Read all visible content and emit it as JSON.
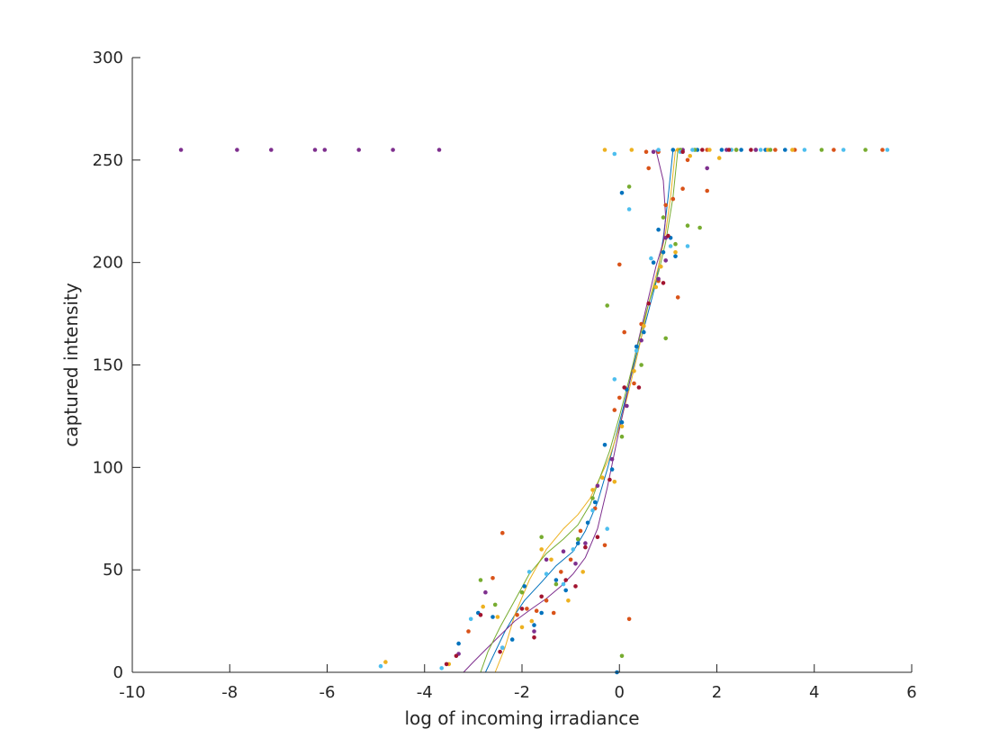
{
  "chart_data": {
    "type": "scatter",
    "title": "",
    "xlabel": "log of incoming irradiance",
    "ylabel": "captured intensity",
    "xlim": [
      -10,
      6
    ],
    "ylim": [
      0,
      300
    ],
    "xticks": [
      -10,
      -8,
      -6,
      -4,
      -2,
      0,
      2,
      4,
      6
    ],
    "yticks": [
      0,
      50,
      100,
      150,
      200,
      250,
      300
    ],
    "grid": false,
    "legend": "none",
    "series": [
      {
        "color": "#0072BD",
        "points": [
          [
            -3.3,
            14
          ],
          [
            -2.9,
            29
          ],
          [
            -2.6,
            27
          ],
          [
            -2.2,
            16
          ],
          [
            -1.95,
            42
          ],
          [
            -1.75,
            23
          ],
          [
            -1.6,
            29
          ],
          [
            -1.3,
            45
          ],
          [
            -1.1,
            40
          ],
          [
            -0.85,
            63
          ],
          [
            -0.65,
            73
          ],
          [
            -0.5,
            83
          ],
          [
            -0.3,
            111
          ],
          [
            -0.15,
            99
          ],
          [
            0.05,
            122
          ],
          [
            0.15,
            138
          ],
          [
            0.35,
            159
          ],
          [
            0.5,
            166
          ],
          [
            0.7,
            200
          ],
          [
            0.8,
            216
          ],
          [
            0.9,
            205
          ],
          [
            1.05,
            212
          ],
          [
            1.15,
            203
          ],
          [
            0.05,
            234
          ],
          [
            1.1,
            255
          ],
          [
            1.6,
            255
          ],
          [
            2.1,
            255
          ],
          [
            2.5,
            255
          ],
          [
            3.0,
            255
          ],
          [
            3.4,
            255
          ],
          [
            -0.05,
            0
          ]
        ],
        "curve": [
          [
            -2.75,
            0
          ],
          [
            -2.55,
            10
          ],
          [
            -2.35,
            20
          ],
          [
            -2.15,
            28
          ],
          [
            -1.95,
            35
          ],
          [
            -1.6,
            44
          ],
          [
            -1.3,
            52
          ],
          [
            -0.95,
            59
          ],
          [
            -0.7,
            69
          ],
          [
            -0.45,
            83
          ],
          [
            -0.25,
            99
          ],
          [
            -0.05,
            117
          ],
          [
            0.15,
            136
          ],
          [
            0.35,
            155
          ],
          [
            0.55,
            172
          ],
          [
            0.75,
            190
          ],
          [
            0.9,
            212
          ],
          [
            1.0,
            232
          ],
          [
            1.1,
            255
          ]
        ]
      },
      {
        "color": "#D95319",
        "points": [
          [
            -3.1,
            20
          ],
          [
            -2.6,
            46
          ],
          [
            -2.4,
            68
          ],
          [
            -2.1,
            28
          ],
          [
            -1.9,
            31
          ],
          [
            -1.7,
            30
          ],
          [
            -1.5,
            35
          ],
          [
            -1.35,
            29
          ],
          [
            -1.2,
            49
          ],
          [
            -1.0,
            55
          ],
          [
            -0.8,
            69
          ],
          [
            -0.5,
            80
          ],
          [
            -0.3,
            62
          ],
          [
            -0.1,
            128
          ],
          [
            0.0,
            134
          ],
          [
            0.1,
            166
          ],
          [
            0.3,
            141
          ],
          [
            0.45,
            170
          ],
          [
            0.6,
            246
          ],
          [
            0.8,
            191
          ],
          [
            0.95,
            228
          ],
          [
            1.1,
            231
          ],
          [
            1.2,
            183
          ],
          [
            1.3,
            236
          ],
          [
            1.4,
            250
          ],
          [
            1.8,
            235
          ],
          [
            0.2,
            26
          ],
          [
            0.0,
            199
          ],
          [
            0.55,
            254
          ],
          [
            0.8,
            254
          ],
          [
            1.8,
            255
          ],
          [
            2.8,
            255
          ],
          [
            3.6,
            255
          ],
          [
            4.4,
            255
          ],
          [
            5.4,
            255
          ],
          [
            2.4,
            255
          ],
          [
            3.2,
            255
          ]
        ],
        "curve": []
      },
      {
        "color": "#EDB120",
        "points": [
          [
            -4.8,
            5
          ],
          [
            -3.5,
            4
          ],
          [
            -2.8,
            32
          ],
          [
            -2.5,
            27
          ],
          [
            -2.0,
            22
          ],
          [
            -1.8,
            25
          ],
          [
            -1.6,
            60
          ],
          [
            -1.4,
            55
          ],
          [
            -1.05,
            35
          ],
          [
            -0.75,
            49
          ],
          [
            -0.55,
            89
          ],
          [
            -0.35,
            95
          ],
          [
            -0.1,
            93
          ],
          [
            0.05,
            120
          ],
          [
            0.3,
            147
          ],
          [
            0.5,
            169
          ],
          [
            0.75,
            188
          ],
          [
            0.85,
            198
          ],
          [
            1.15,
            205
          ],
          [
            1.45,
            252
          ],
          [
            2.05,
            251
          ],
          [
            0.25,
            255
          ],
          [
            1.2,
            255
          ],
          [
            1.85,
            255
          ],
          [
            2.3,
            255
          ],
          [
            3.05,
            255
          ],
          [
            3.55,
            255
          ],
          [
            -0.3,
            255
          ]
        ],
        "curve": [
          [
            -2.55,
            0
          ],
          [
            -2.35,
            12
          ],
          [
            -2.15,
            28
          ],
          [
            -1.85,
            45
          ],
          [
            -1.5,
            60
          ],
          [
            -1.15,
            70
          ],
          [
            -0.85,
            77
          ],
          [
            -0.6,
            85
          ],
          [
            -0.4,
            95
          ],
          [
            -0.2,
            105
          ],
          [
            0.0,
            120
          ],
          [
            0.2,
            138
          ],
          [
            0.4,
            158
          ],
          [
            0.6,
            180
          ],
          [
            0.8,
            198
          ],
          [
            0.95,
            215
          ],
          [
            1.05,
            232
          ],
          [
            1.15,
            255
          ]
        ]
      },
      {
        "color": "#7E2F8E",
        "points": [
          [
            -9.0,
            255
          ],
          [
            -7.85,
            255
          ],
          [
            -7.15,
            255
          ],
          [
            -6.25,
            255
          ],
          [
            -6.05,
            255
          ],
          [
            -5.35,
            255
          ],
          [
            -4.65,
            255
          ],
          [
            -3.7,
            255
          ],
          [
            -3.3,
            9
          ],
          [
            -2.75,
            39
          ],
          [
            -2.4,
            12
          ],
          [
            -1.75,
            20
          ],
          [
            -1.5,
            55
          ],
          [
            -1.15,
            59
          ],
          [
            -0.9,
            53
          ],
          [
            -0.7,
            63
          ],
          [
            -0.45,
            91
          ],
          [
            -0.15,
            104
          ],
          [
            0.15,
            130
          ],
          [
            0.45,
            162
          ],
          [
            0.8,
            192
          ],
          [
            0.95,
            201
          ],
          [
            1.8,
            246
          ],
          [
            0.95,
            212
          ],
          [
            0.7,
            254
          ],
          [
            1.3,
            255
          ],
          [
            2.2,
            255
          ],
          [
            2.8,
            255
          ]
        ],
        "curve": [
          [
            -3.2,
            0
          ],
          [
            -3.0,
            5
          ],
          [
            -2.75,
            11
          ],
          [
            -2.45,
            18
          ],
          [
            -2.15,
            25
          ],
          [
            -1.8,
            31
          ],
          [
            -1.5,
            36
          ],
          [
            -1.2,
            42
          ],
          [
            -0.95,
            48
          ],
          [
            -0.7,
            56
          ],
          [
            -0.45,
            70
          ],
          [
            -0.25,
            90
          ],
          [
            -0.05,
            113
          ],
          [
            0.15,
            135
          ],
          [
            0.35,
            158
          ],
          [
            0.55,
            178
          ],
          [
            0.75,
            198
          ],
          [
            0.9,
            210
          ],
          [
            0.95,
            222
          ],
          [
            0.9,
            240
          ],
          [
            0.75,
            255
          ]
        ]
      },
      {
        "color": "#77AC30",
        "points": [
          [
            -2.85,
            45
          ],
          [
            -2.55,
            33
          ],
          [
            -2.0,
            39
          ],
          [
            -1.6,
            66
          ],
          [
            -1.3,
            43
          ],
          [
            -0.85,
            65
          ],
          [
            -0.55,
            85
          ],
          [
            -0.25,
            179
          ],
          [
            0.05,
            115
          ],
          [
            0.2,
            237
          ],
          [
            0.45,
            150
          ],
          [
            0.9,
            222
          ],
          [
            0.95,
            163
          ],
          [
            1.15,
            209
          ],
          [
            1.4,
            218
          ],
          [
            1.65,
            217
          ],
          [
            0.05,
            8
          ],
          [
            1.25,
            255
          ],
          [
            1.55,
            255
          ],
          [
            2.4,
            255
          ],
          [
            3.1,
            255
          ],
          [
            4.15,
            255
          ],
          [
            5.05,
            255
          ]
        ],
        "curve": [
          [
            -2.85,
            0
          ],
          [
            -2.7,
            10
          ],
          [
            -2.45,
            22
          ],
          [
            -2.15,
            35
          ],
          [
            -1.85,
            48
          ],
          [
            -1.5,
            58
          ],
          [
            -1.15,
            65
          ],
          [
            -0.85,
            72
          ],
          [
            -0.6,
            82
          ],
          [
            -0.4,
            95
          ],
          [
            -0.2,
            108
          ],
          [
            0.0,
            125
          ],
          [
            0.2,
            143
          ],
          [
            0.4,
            162
          ],
          [
            0.6,
            180
          ],
          [
            0.8,
            195
          ],
          [
            0.95,
            210
          ],
          [
            1.1,
            232
          ],
          [
            1.2,
            255
          ]
        ]
      },
      {
        "color": "#4DBEEE",
        "points": [
          [
            -4.9,
            3
          ],
          [
            -3.65,
            2
          ],
          [
            -3.05,
            26
          ],
          [
            -2.4,
            12
          ],
          [
            -1.85,
            49
          ],
          [
            -1.5,
            48
          ],
          [
            -1.15,
            43
          ],
          [
            -0.95,
            60
          ],
          [
            -0.55,
            79
          ],
          [
            -0.25,
            70
          ],
          [
            -0.1,
            143
          ],
          [
            0.2,
            226
          ],
          [
            0.35,
            157
          ],
          [
            0.65,
            202
          ],
          [
            1.25,
            254
          ],
          [
            1.4,
            208
          ],
          [
            1.05,
            208
          ],
          [
            -0.1,
            253
          ],
          [
            0.8,
            255
          ],
          [
            1.5,
            255
          ],
          [
            2.3,
            255
          ],
          [
            2.9,
            255
          ],
          [
            3.8,
            255
          ],
          [
            4.6,
            255
          ],
          [
            5.5,
            255
          ]
        ],
        "curve": []
      },
      {
        "color": "#A2142F",
        "points": [
          [
            -3.55,
            4
          ],
          [
            -3.35,
            8
          ],
          [
            -2.85,
            28
          ],
          [
            -2.45,
            10
          ],
          [
            -2.0,
            31
          ],
          [
            -1.75,
            17
          ],
          [
            -1.6,
            37
          ],
          [
            -1.1,
            45
          ],
          [
            -0.9,
            42
          ],
          [
            -0.7,
            61
          ],
          [
            -0.45,
            66
          ],
          [
            -0.2,
            94
          ],
          [
            0.1,
            139
          ],
          [
            0.4,
            139
          ],
          [
            0.6,
            180
          ],
          [
            0.9,
            190
          ],
          [
            1.0,
            213
          ],
          [
            1.3,
            254
          ],
          [
            1.7,
            255
          ],
          [
            2.25,
            255
          ],
          [
            2.7,
            255
          ]
        ],
        "curve": []
      }
    ]
  }
}
